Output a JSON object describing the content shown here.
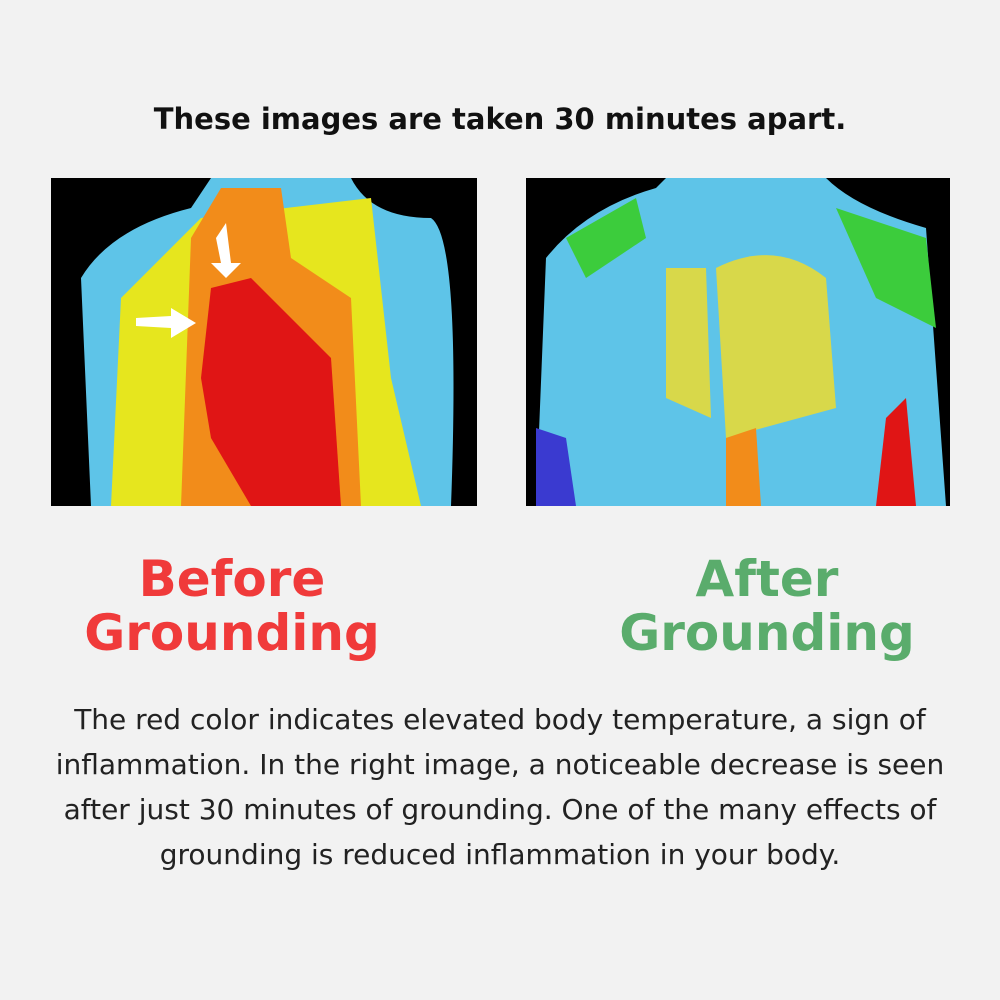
{
  "title": "These images are taken 30 minutes apart.",
  "before": {
    "line1": "Before",
    "line2": "Grounding",
    "color": "#f03a3a"
  },
  "after": {
    "line1": "After",
    "line2": "Grounding",
    "color": "#5aac6c"
  },
  "description": "The red color indicates elevated body temperature, a sign of inflammation. In the right image, a noticeable decrease is seen after just 30 minutes of grounding. One of the many effects of grounding is reduced inflammation in your body."
}
